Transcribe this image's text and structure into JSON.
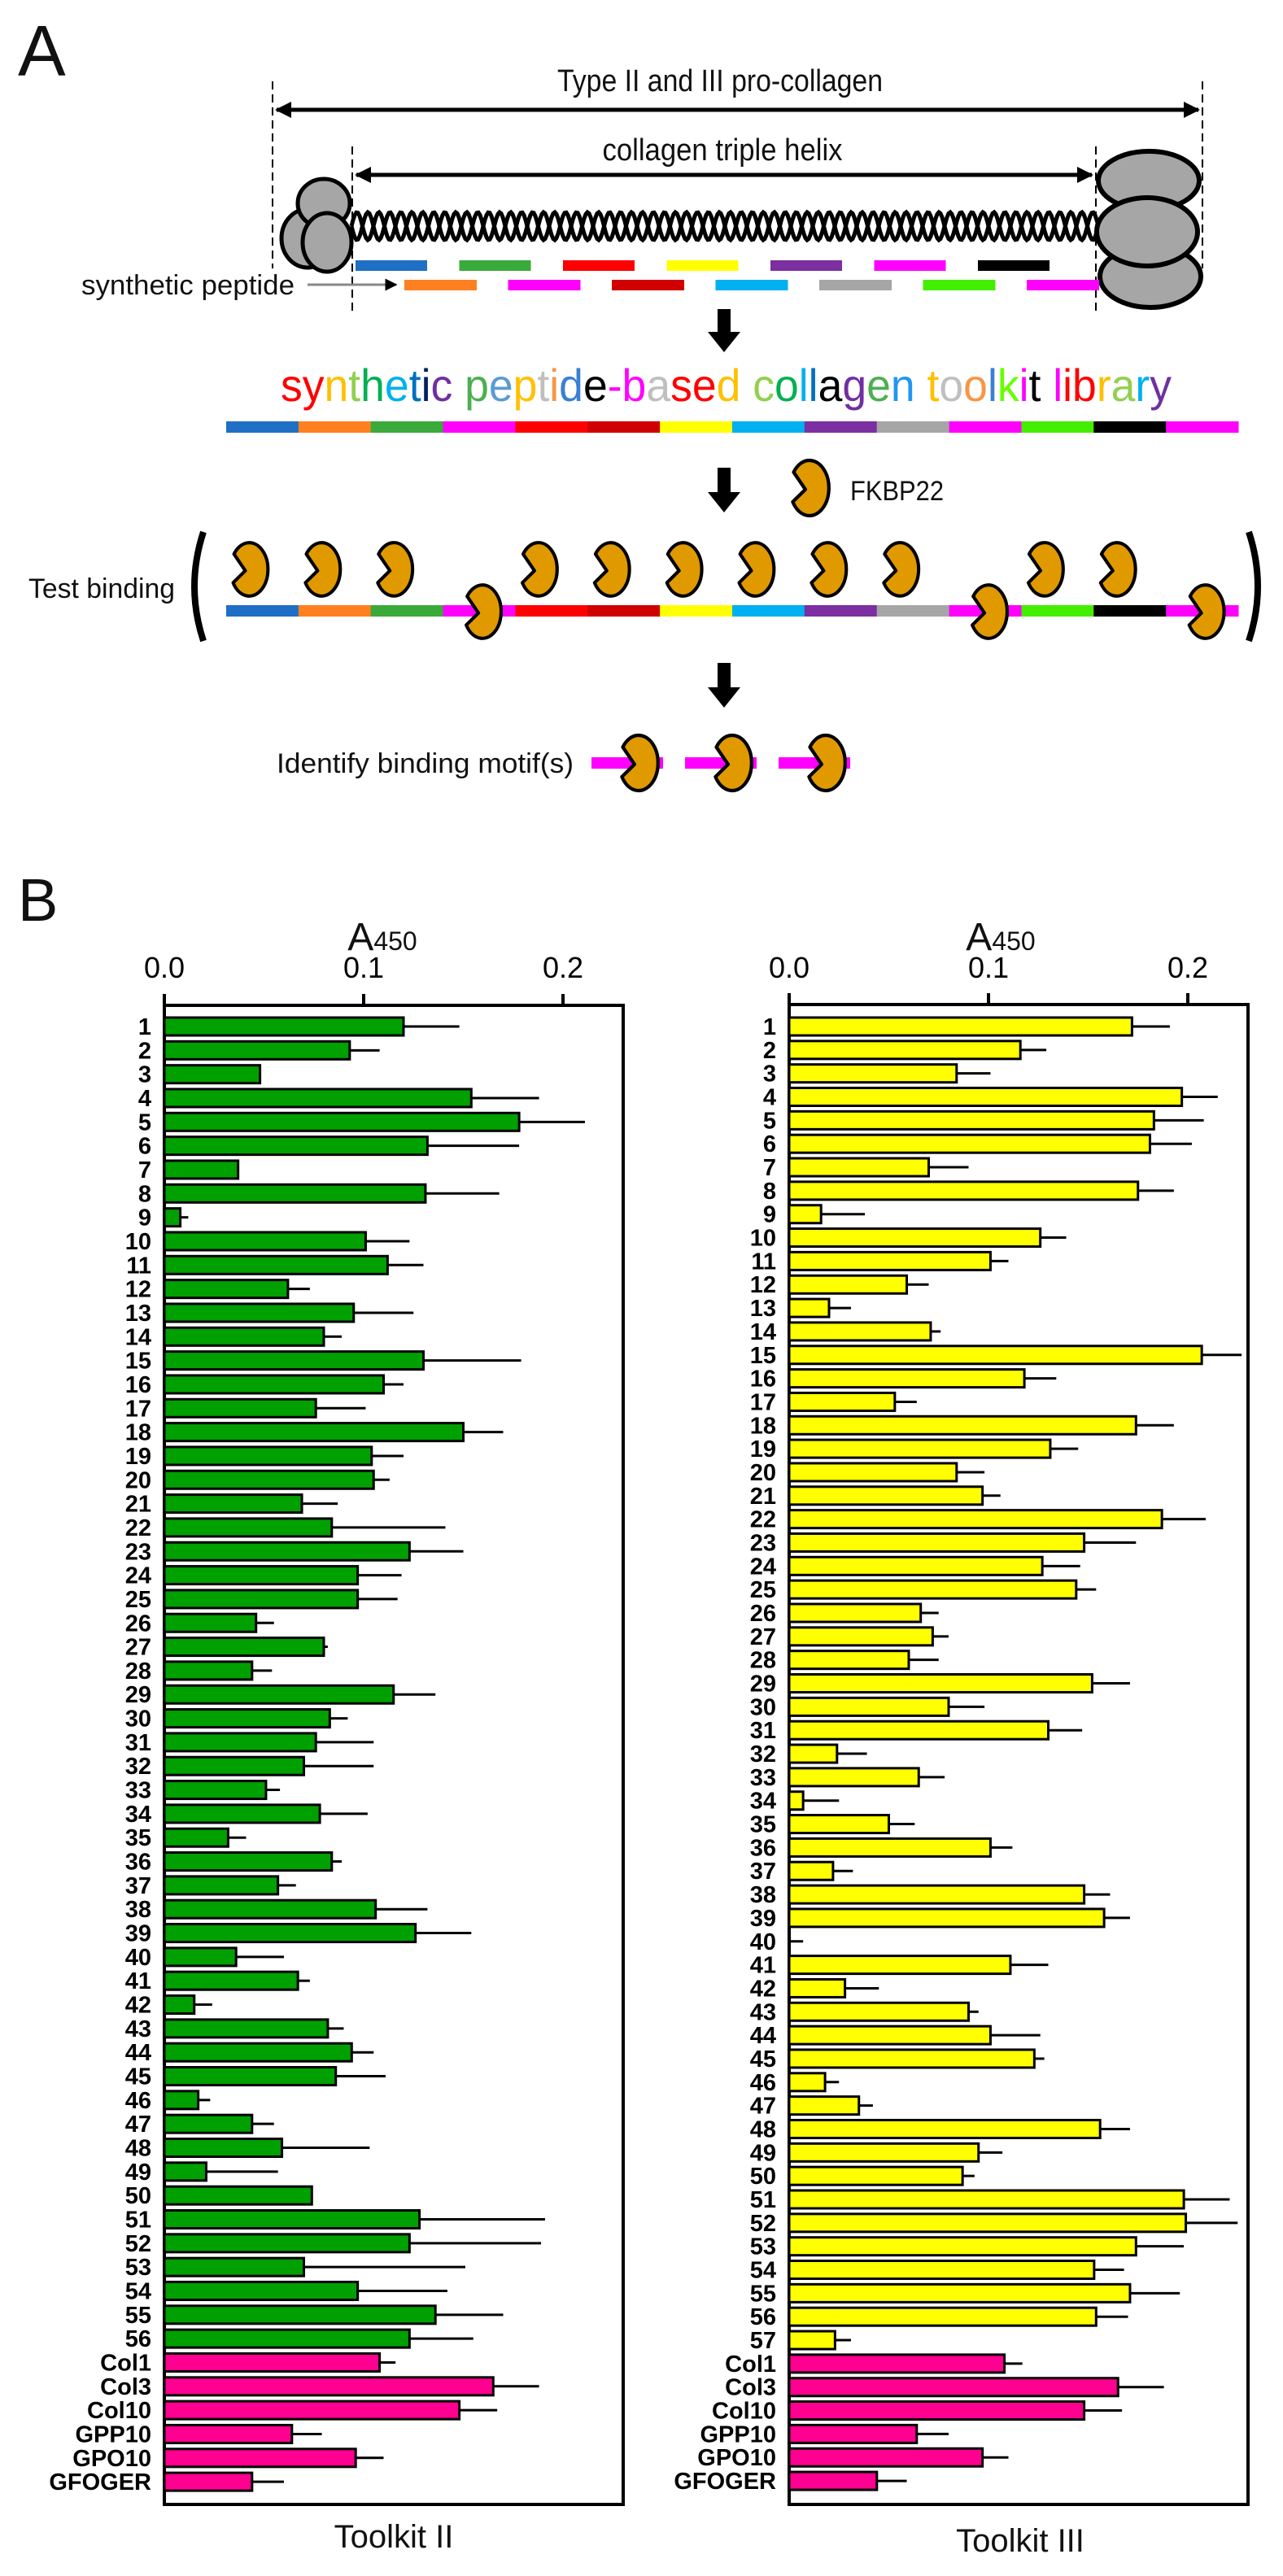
{
  "panel_labels": {
    "a": "A",
    "b": "B"
  },
  "diagram": {
    "procollagen_label": "Type II and III pro-collagen",
    "helix_label": "collagen triple helix",
    "synthetic_peptide_label": "synthetic peptide",
    "library_title": "synthetic peptide-based collagen toolkit library",
    "library_title_colors": [
      "#ff0000",
      "#ff0000",
      "#ffc000",
      "#92d050",
      "#00b050",
      "#00b0f0",
      "#0070c0",
      "#002060",
      "#7030a0",
      " ",
      "#4caf50",
      "#5b9bd5",
      "#ffc000",
      "#bfbfbf",
      "#f79646",
      "#3a7fd5",
      "#000000",
      "#ff00ff",
      "#ff00ff",
      "#bfbfbf",
      "#ff0000",
      "#ff0000",
      "#ffc000",
      " ",
      "#92d050",
      "#00b050",
      "#00b0f0",
      "#0070c0",
      "#000000",
      "#7030a0",
      "#4caf50",
      "#2196f3",
      " ",
      "#ffc000",
      "#bfbfbf",
      "#f79646",
      "#3a7fd5",
      "#66ff00",
      "#ff00ff",
      "#000000",
      " ",
      "#ff00ff",
      "#ff0000",
      "#ff0000",
      "#ffc000",
      "#92d050",
      "#00b0f0",
      "#7030a0"
    ],
    "segment_row1_colors": [
      "#1f6fc5",
      "#3aaa3a",
      "#ff0000",
      "#ffff00",
      "#7b2fa0",
      "#ff00ff",
      "#000000"
    ],
    "segment_row2_colors": [
      "#ff8020",
      "#ff00ff",
      "#d00000",
      "#00b0f0",
      "#a6a6a6",
      "#44ee00",
      "#ff00ff"
    ],
    "library_colors": [
      "#1f6fc5",
      "#ff8020",
      "#3aaa3a",
      "#ff00ff",
      "#ff0000",
      "#d00000",
      "#ffff00",
      "#00b0f0",
      "#7b2fa0",
      "#a6a6a6",
      "#ff00ff",
      "#44ee00",
      "#000000",
      "#ff00ff"
    ],
    "binding_positions": [
      "above",
      "above",
      "above",
      "below",
      "above",
      "above",
      "above",
      "above",
      "above",
      "above",
      "below",
      "above",
      "above",
      "below"
    ],
    "fkbp_label": "FKBP22",
    "fkbp_color": "#e09a00",
    "test_binding_label": "Test binding",
    "identify_label": "Identify binding motif(s)",
    "motif_color": "#ff00ff"
  },
  "chart_data": [
    {
      "type": "bar",
      "orientation": "horizontal",
      "title": "Toolkit II",
      "xlabel_main": "A",
      "xlabel_sub": "450",
      "xlim": [
        0,
        0.23
      ],
      "xticks": [
        "0.0",
        "0.1",
        "0.2"
      ],
      "xtick_values": [
        0,
        0.1,
        0.2
      ],
      "bar_color": "#00a000",
      "control_color": "#ff0090",
      "categories": [
        "1",
        "2",
        "3",
        "4",
        "5",
        "6",
        "7",
        "8",
        "9",
        "10",
        "11",
        "12",
        "13",
        "14",
        "15",
        "16",
        "17",
        "18",
        "19",
        "20",
        "21",
        "22",
        "23",
        "24",
        "25",
        "26",
        "27",
        "28",
        "29",
        "30",
        "31",
        "32",
        "33",
        "34",
        "35",
        "36",
        "37",
        "38",
        "39",
        "40",
        "41",
        "42",
        "43",
        "44",
        "45",
        "46",
        "47",
        "48",
        "49",
        "50",
        "51",
        "52",
        "53",
        "54",
        "55",
        "56",
        "Col1",
        "Col3",
        "Col10",
        "GPP10",
        "GPO10",
        "GFOGER"
      ],
      "values": [
        0.12,
        0.093,
        0.048,
        0.154,
        0.178,
        0.132,
        0.037,
        0.131,
        0.008,
        0.101,
        0.112,
        0.062,
        0.095,
        0.08,
        0.13,
        0.11,
        0.076,
        0.15,
        0.104,
        0.105,
        0.069,
        0.084,
        0.123,
        0.097,
        0.097,
        0.046,
        0.08,
        0.044,
        0.115,
        0.083,
        0.076,
        0.07,
        0.051,
        0.078,
        0.032,
        0.084,
        0.057,
        0.106,
        0.126,
        0.036,
        0.067,
        0.015,
        0.082,
        0.094,
        0.086,
        0.017,
        0.044,
        0.059,
        0.021,
        0.074,
        0.128,
        0.123,
        0.07,
        0.097,
        0.136,
        0.123,
        0.108,
        0.165,
        0.148,
        0.064,
        0.096,
        0.044
      ],
      "errors": [
        0.028,
        0.015,
        0,
        0.034,
        0.033,
        0.046,
        0,
        0.037,
        0.004,
        0.022,
        0.018,
        0.011,
        0.03,
        0.009,
        0.049,
        0.01,
        0.025,
        0.02,
        0.016,
        0.008,
        0.018,
        0.057,
        0.027,
        0.022,
        0.02,
        0.009,
        0.002,
        0.01,
        0.021,
        0.009,
        0.029,
        0.035,
        0.007,
        0.024,
        0.009,
        0.005,
        0.009,
        0.026,
        0.028,
        0.024,
        0.006,
        0.009,
        0.008,
        0.011,
        0.025,
        0.006,
        0.011,
        0.044,
        0.036,
        0,
        0.063,
        0.066,
        0.081,
        0.045,
        0.034,
        0.032,
        0.008,
        0.023,
        0.019,
        0.015,
        0.014,
        0.016
      ],
      "n_controls": 6
    },
    {
      "type": "bar",
      "orientation": "horizontal",
      "title": "Toolkit III",
      "xlabel_main": "A",
      "xlabel_sub": "450",
      "xlim": [
        0,
        0.23
      ],
      "xticks": [
        "0.0",
        "0.1",
        "0.2"
      ],
      "xtick_values": [
        0,
        0.1,
        0.2
      ],
      "bar_color": "#ffff00",
      "control_color": "#ff0090",
      "categories": [
        "1",
        "2",
        "3",
        "4",
        "5",
        "6",
        "7",
        "8",
        "9",
        "10",
        "11",
        "12",
        "13",
        "14",
        "15",
        "16",
        "17",
        "18",
        "19",
        "20",
        "21",
        "22",
        "23",
        "24",
        "25",
        "26",
        "27",
        "28",
        "29",
        "30",
        "31",
        "32",
        "33",
        "34",
        "35",
        "36",
        "37",
        "38",
        "39",
        "40",
        "41",
        "42",
        "43",
        "44",
        "45",
        "46",
        "47",
        "48",
        "49",
        "50",
        "51",
        "52",
        "53",
        "54",
        "55",
        "56",
        "57",
        "Col1",
        "Col3",
        "Col10",
        "GPP10",
        "GPO10",
        "GFOGER"
      ],
      "values": [
        0.172,
        0.116,
        0.084,
        0.197,
        0.183,
        0.181,
        0.07,
        0.175,
        0.016,
        0.126,
        0.101,
        0.059,
        0.02,
        0.071,
        0.207,
        0.118,
        0.053,
        0.174,
        0.131,
        0.084,
        0.097,
        0.187,
        0.148,
        0.127,
        0.144,
        0.066,
        0.072,
        0.06,
        0.152,
        0.08,
        0.13,
        0.024,
        0.065,
        0.007,
        0.05,
        0.101,
        0.022,
        0.148,
        0.158,
        0.0,
        0.111,
        0.028,
        0.09,
        0.101,
        0.123,
        0.018,
        0.035,
        0.156,
        0.095,
        0.087,
        0.198,
        0.199,
        0.174,
        0.153,
        0.171,
        0.154,
        0.023,
        0.108,
        0.165,
        0.148,
        0.064,
        0.097,
        0.044
      ],
      "errors": [
        0.019,
        0.013,
        0.017,
        0.018,
        0.025,
        0.021,
        0.02,
        0.018,
        0.022,
        0.013,
        0.009,
        0.011,
        0.011,
        0.005,
        0.02,
        0.016,
        0.011,
        0.019,
        0.014,
        0.014,
        0.009,
        0.022,
        0.026,
        0.019,
        0.01,
        0.009,
        0.008,
        0.015,
        0.019,
        0.018,
        0.017,
        0.015,
        0.013,
        0.018,
        0.013,
        0.011,
        0.01,
        0.013,
        0.013,
        0.007,
        0.019,
        0.017,
        0.005,
        0.025,
        0.005,
        0.007,
        0.007,
        0.015,
        0.012,
        0.006,
        0.023,
        0.026,
        0.024,
        0.015,
        0.025,
        0.016,
        0.008,
        0.009,
        0.023,
        0.019,
        0.016,
        0.013,
        0.015
      ],
      "n_controls": 6
    }
  ]
}
